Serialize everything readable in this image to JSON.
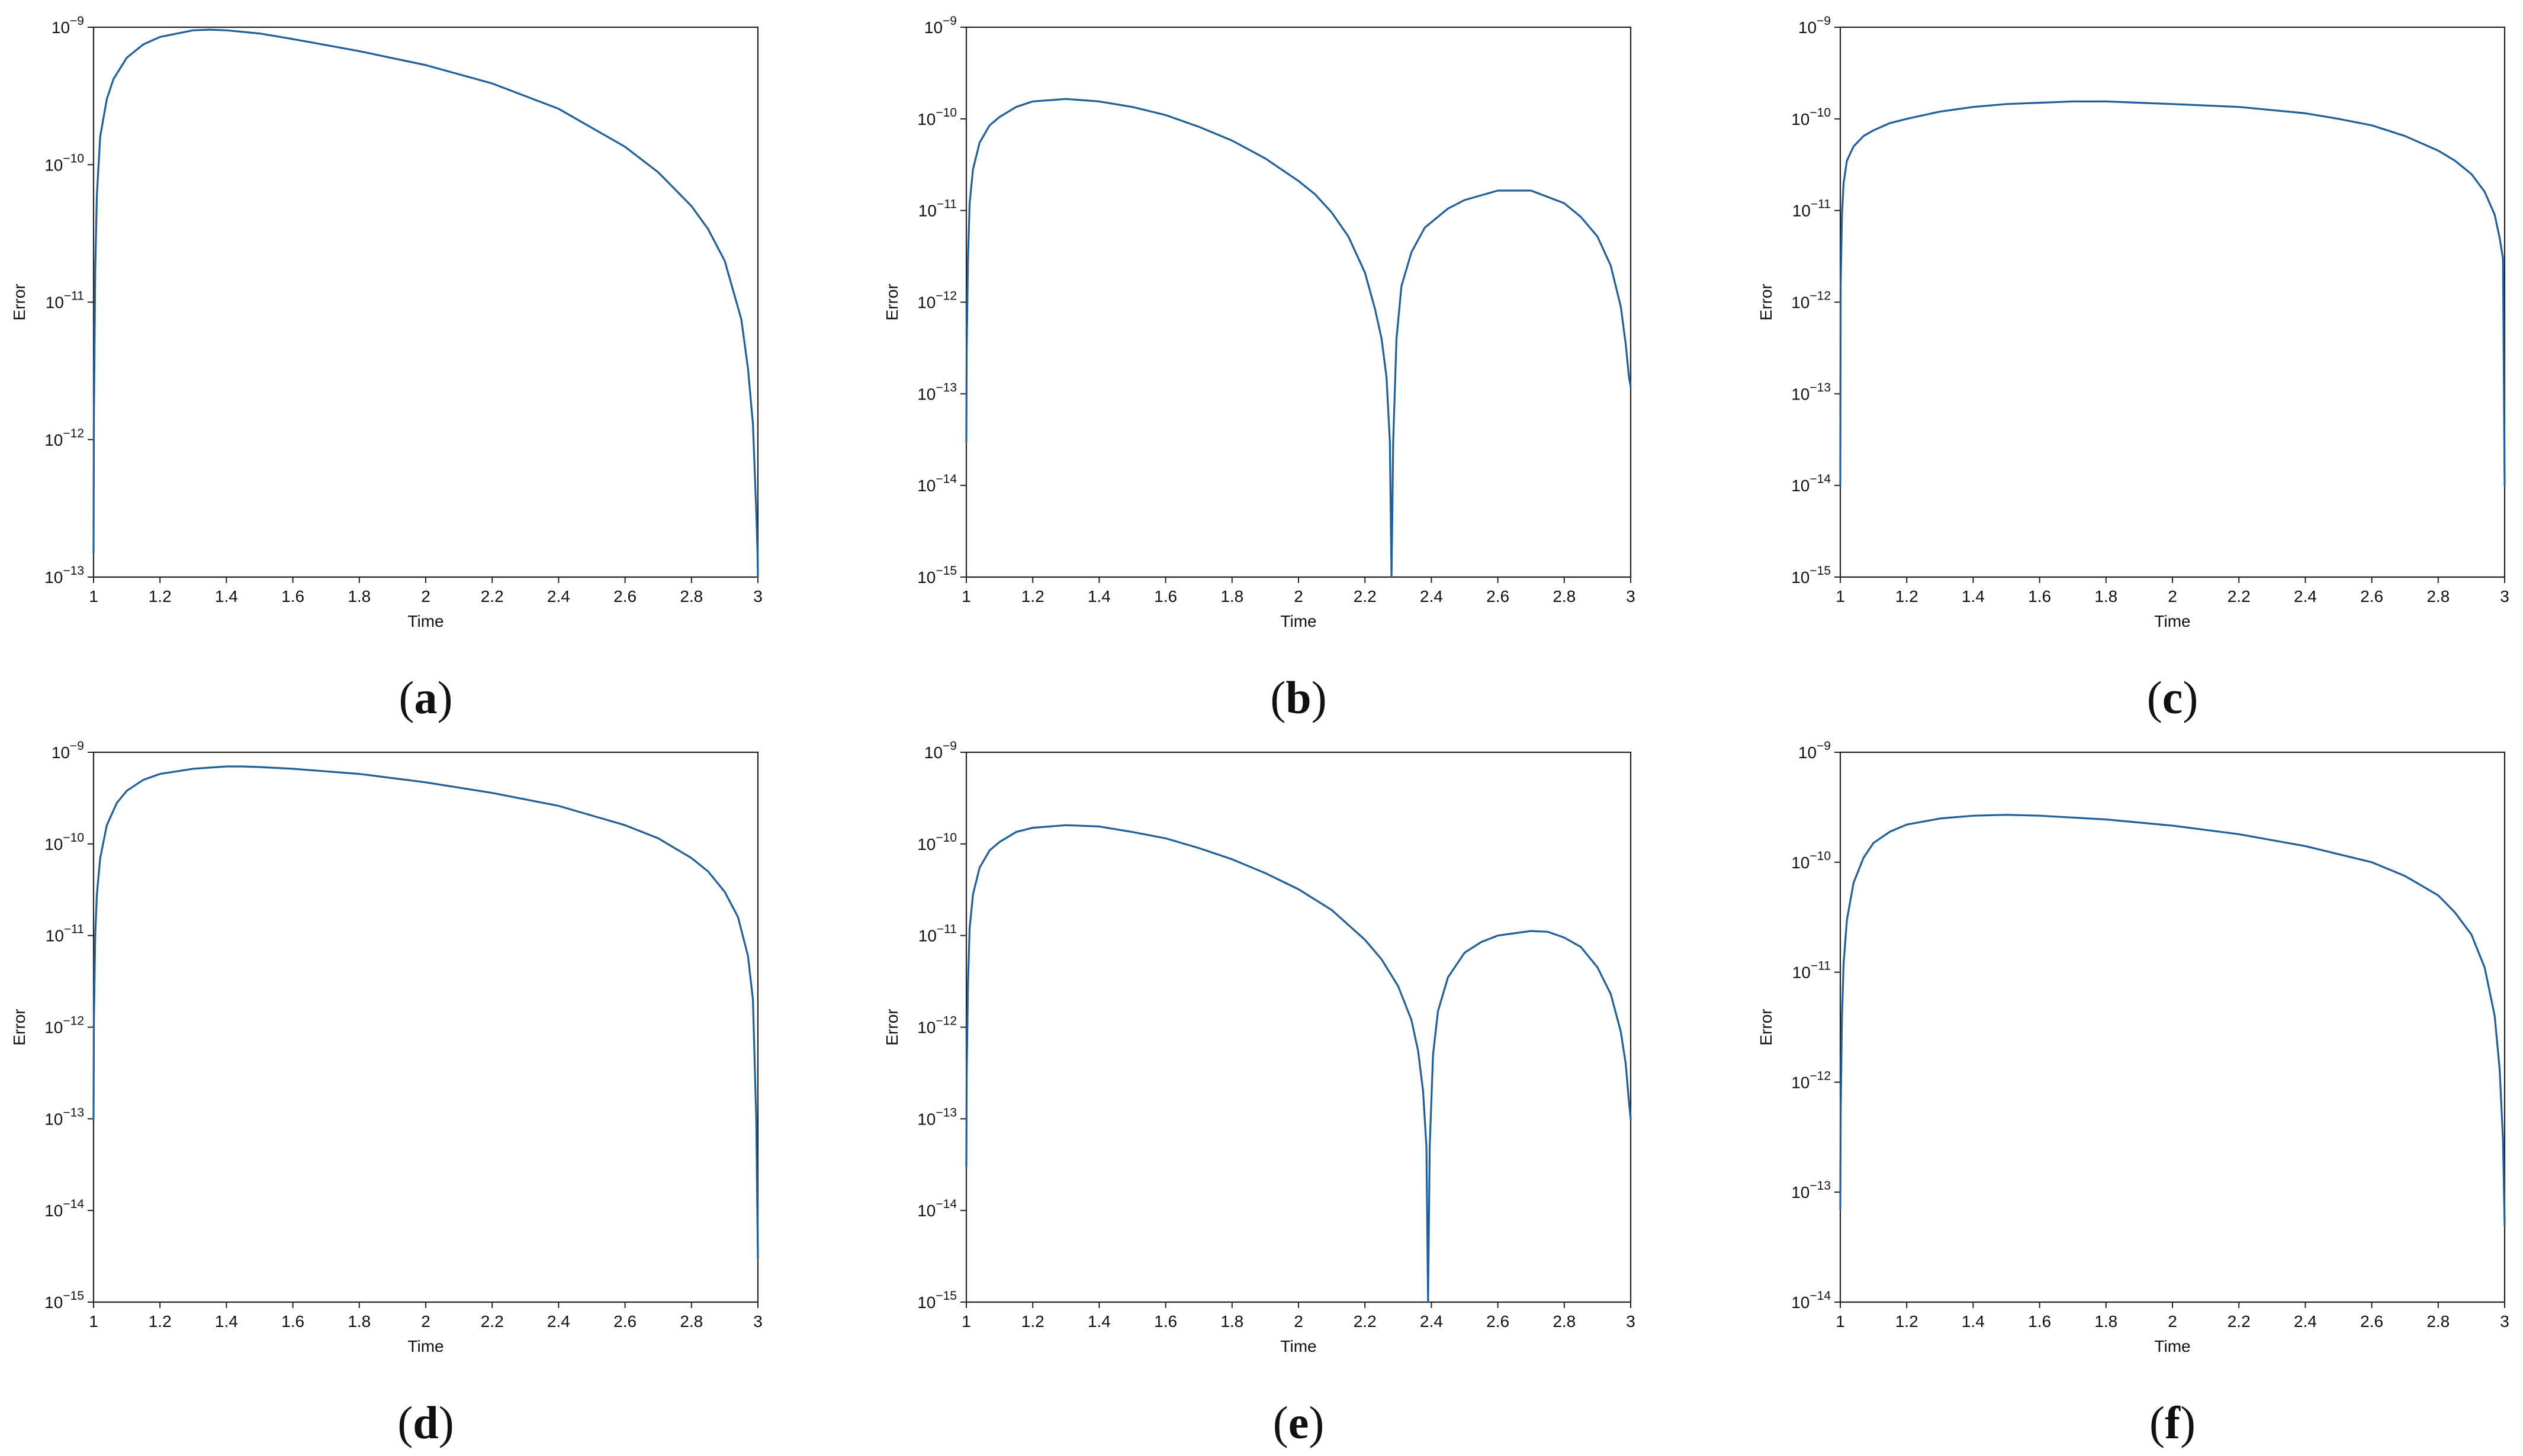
{
  "caption_parens": [
    "(",
    ")"
  ],
  "chart_data": [
    {
      "type": "line",
      "caption": "a",
      "xlabel": "Time",
      "ylabel": "Error",
      "xlim": [
        1,
        3
      ],
      "ylim_log10": [
        -13,
        -9
      ],
      "yscale": "log",
      "xticks": [
        "1",
        "1.2",
        "1.4",
        "1.6",
        "1.8",
        "2",
        "2.2",
        "2.4",
        "2.6",
        "2.8",
        "3"
      ],
      "yticks": [
        {
          "base": "10",
          "exp": "−9"
        },
        {
          "base": "10",
          "exp": "−10"
        },
        {
          "base": "10",
          "exp": "−11"
        },
        {
          "base": "10",
          "exp": "−12"
        },
        {
          "base": "10",
          "exp": "−13"
        }
      ],
      "line_color": "#1f5f9a",
      "series": [
        {
          "x": [
            1.0,
            1.001,
            1.005,
            1.01,
            1.02,
            1.04,
            1.06,
            1.1,
            1.15,
            1.2,
            1.3,
            1.35,
            1.4,
            1.5,
            1.6,
            1.8,
            2.0,
            2.2,
            2.4,
            2.6,
            2.7,
            2.8,
            2.85,
            2.9,
            2.95,
            2.97,
            2.985,
            2.995,
            2.999,
            3.0
          ],
          "y": [
            1.5e-13,
            1.5e-12,
            1.7e-11,
            6e-11,
            1.6e-10,
            3e-10,
            4.2e-10,
            6e-10,
            7.5e-10,
            8.5e-10,
            9.5e-10,
            9.6e-10,
            9.5e-10,
            9e-10,
            8.2e-10,
            6.7e-10,
            5.3e-10,
            3.9e-10,
            2.55e-10,
            1.35e-10,
            8.8e-11,
            5e-11,
            3.4e-11,
            2e-11,
            7.5e-12,
            3.3e-12,
            1.3e-12,
            3e-13,
            1.5e-13,
            1e-13
          ]
        }
      ]
    },
    {
      "type": "line",
      "caption": "b",
      "xlabel": "Time",
      "ylabel": "Error",
      "xlim": [
        1,
        3
      ],
      "ylim_log10": [
        -15,
        -9
      ],
      "yscale": "log",
      "xticks": [
        "1",
        "1.2",
        "1.4",
        "1.6",
        "1.8",
        "2",
        "2.2",
        "2.4",
        "2.6",
        "2.8",
        "3"
      ],
      "yticks": [
        {
          "base": "10",
          "exp": "−9"
        },
        {
          "base": "10",
          "exp": "−10"
        },
        {
          "base": "10",
          "exp": "−11"
        },
        {
          "base": "10",
          "exp": "−12"
        },
        {
          "base": "10",
          "exp": "−13"
        },
        {
          "base": "10",
          "exp": "−14"
        },
        {
          "base": "10",
          "exp": "−15"
        }
      ],
      "line_color": "#1f5f9a",
      "series": [
        {
          "x": [
            1.0,
            1.001,
            1.005,
            1.01,
            1.02,
            1.04,
            1.07,
            1.1,
            1.15,
            1.2,
            1.3,
            1.4,
            1.5,
            1.6,
            1.7,
            1.8,
            1.9,
            2.0,
            2.05,
            2.1,
            2.15,
            2.2,
            2.23,
            2.25,
            2.265,
            2.275,
            2.28,
            2.285,
            2.295,
            2.31,
            2.34,
            2.38,
            2.45,
            2.5,
            2.6,
            2.7,
            2.8,
            2.85,
            2.9,
            2.94,
            2.97,
            2.985,
            2.995,
            3.0
          ],
          "y": [
            3e-14,
            3e-13,
            3e-12,
            1.2e-11,
            2.8e-11,
            5.5e-11,
            8.5e-11,
            1.05e-10,
            1.35e-10,
            1.55e-10,
            1.65e-10,
            1.55e-10,
            1.35e-10,
            1.1e-10,
            8.2e-11,
            5.8e-11,
            3.7e-11,
            2.1e-11,
            1.5e-11,
            9.5e-12,
            5.2e-12,
            2.1e-12,
            8.5e-13,
            4e-13,
            1.5e-13,
            3e-14,
            1e-15,
            3e-14,
            4e-13,
            1.5e-12,
            3.5e-12,
            6.5e-12,
            1.05e-11,
            1.3e-11,
            1.65e-11,
            1.65e-11,
            1.2e-11,
            8.5e-12,
            5.2e-12,
            2.5e-12,
            9e-13,
            3.5e-13,
            1.5e-13,
            1.2e-13
          ]
        }
      ]
    },
    {
      "type": "line",
      "caption": "c",
      "xlabel": "Time",
      "ylabel": "Error",
      "xlim": [
        1,
        3
      ],
      "ylim_log10": [
        -15,
        -9
      ],
      "yscale": "log",
      "xticks": [
        "1",
        "1.2",
        "1.4",
        "1.6",
        "1.8",
        "2",
        "2.2",
        "2.4",
        "2.6",
        "2.8",
        "3"
      ],
      "yticks": [
        {
          "base": "10",
          "exp": "−9"
        },
        {
          "base": "10",
          "exp": "−10"
        },
        {
          "base": "10",
          "exp": "−11"
        },
        {
          "base": "10",
          "exp": "−12"
        },
        {
          "base": "10",
          "exp": "−13"
        },
        {
          "base": "10",
          "exp": "−14"
        },
        {
          "base": "10",
          "exp": "−15"
        }
      ],
      "line_color": "#1f5f9a",
      "series": [
        {
          "x": [
            1.0,
            1.001,
            1.005,
            1.01,
            1.02,
            1.04,
            1.07,
            1.1,
            1.15,
            1.2,
            1.3,
            1.4,
            1.5,
            1.6,
            1.7,
            1.8,
            1.9,
            2.0,
            2.2,
            2.4,
            2.5,
            2.6,
            2.7,
            2.8,
            2.85,
            2.9,
            2.94,
            2.97,
            2.985,
            2.995,
            3.0
          ],
          "y": [
            1e-14,
            1.5e-12,
            9e-12,
            2e-11,
            3.5e-11,
            5e-11,
            6.5e-11,
            7.5e-11,
            9e-11,
            1e-10,
            1.2e-10,
            1.35e-10,
            1.45e-10,
            1.5e-10,
            1.55e-10,
            1.55e-10,
            1.5e-10,
            1.45e-10,
            1.35e-10,
            1.15e-10,
            1e-10,
            8.5e-11,
            6.5e-11,
            4.5e-11,
            3.5e-11,
            2.5e-11,
            1.6e-11,
            9e-12,
            5e-12,
            3e-12,
            1e-14
          ]
        }
      ]
    },
    {
      "type": "line",
      "caption": "d",
      "xlabel": "Time",
      "ylabel": "Error",
      "xlim": [
        1,
        3
      ],
      "ylim_log10": [
        -15,
        -9
      ],
      "yscale": "log",
      "xticks": [
        "1",
        "1.2",
        "1.4",
        "1.6",
        "1.8",
        "2",
        "2.2",
        "2.4",
        "2.6",
        "2.8",
        "3"
      ],
      "yticks": [
        {
          "base": "10",
          "exp": "−9"
        },
        {
          "base": "10",
          "exp": "−10"
        },
        {
          "base": "10",
          "exp": "−11"
        },
        {
          "base": "10",
          "exp": "−12"
        },
        {
          "base": "10",
          "exp": "−13"
        },
        {
          "base": "10",
          "exp": "−14"
        },
        {
          "base": "10",
          "exp": "−15"
        }
      ],
      "line_color": "#1f5f9a",
      "series": [
        {
          "x": [
            1.0,
            1.001,
            1.005,
            1.01,
            1.02,
            1.04,
            1.07,
            1.1,
            1.15,
            1.2,
            1.3,
            1.4,
            1.45,
            1.5,
            1.6,
            1.8,
            2.0,
            2.2,
            2.4,
            2.6,
            2.7,
            2.8,
            2.85,
            2.9,
            2.94,
            2.97,
            2.985,
            2.995,
            3.0
          ],
          "y": [
            1e-13,
            1.2e-12,
            1e-11,
            2.8e-11,
            7e-11,
            1.6e-10,
            2.8e-10,
            3.8e-10,
            5e-10,
            5.8e-10,
            6.6e-10,
            7e-10,
            7e-10,
            6.9e-10,
            6.6e-10,
            5.8e-10,
            4.7e-10,
            3.6e-10,
            2.6e-10,
            1.6e-10,
            1.15e-10,
            7e-11,
            5e-11,
            3e-11,
            1.6e-11,
            6e-12,
            2e-12,
            1e-13,
            3e-15
          ]
        }
      ]
    },
    {
      "type": "line",
      "caption": "e",
      "xlabel": "Time",
      "ylabel": "Error",
      "xlim": [
        1,
        3
      ],
      "ylim_log10": [
        -15,
        -9
      ],
      "yscale": "log",
      "xticks": [
        "1",
        "1.2",
        "1.4",
        "1.6",
        "1.8",
        "2",
        "2.2",
        "2.4",
        "2.6",
        "2.8",
        "3"
      ],
      "yticks": [
        {
          "base": "10",
          "exp": "−9"
        },
        {
          "base": "10",
          "exp": "−10"
        },
        {
          "base": "10",
          "exp": "−11"
        },
        {
          "base": "10",
          "exp": "−12"
        },
        {
          "base": "10",
          "exp": "−13"
        },
        {
          "base": "10",
          "exp": "−14"
        },
        {
          "base": "10",
          "exp": "−15"
        }
      ],
      "line_color": "#1f5f9a",
      "series": [
        {
          "x": [
            1.0,
            1.001,
            1.005,
            1.01,
            1.02,
            1.04,
            1.07,
            1.1,
            1.15,
            1.2,
            1.3,
            1.4,
            1.5,
            1.6,
            1.7,
            1.8,
            1.9,
            2.0,
            2.1,
            2.2,
            2.25,
            2.3,
            2.34,
            2.36,
            2.375,
            2.385,
            2.39,
            2.395,
            2.405,
            2.42,
            2.45,
            2.5,
            2.55,
            2.6,
            2.7,
            2.75,
            2.8,
            2.85,
            2.9,
            2.94,
            2.97,
            2.985,
            2.995,
            3.0
          ],
          "y": [
            3e-14,
            3e-13,
            3e-12,
            1.2e-11,
            2.8e-11,
            5.5e-11,
            8.5e-11,
            1.05e-10,
            1.35e-10,
            1.5e-10,
            1.6e-10,
            1.55e-10,
            1.35e-10,
            1.15e-10,
            9e-11,
            6.8e-11,
            4.8e-11,
            3.2e-11,
            1.9e-11,
            9e-12,
            5.5e-12,
            2.8e-12,
            1.2e-12,
            5.5e-13,
            2e-13,
            5e-14,
            1e-15,
            5e-14,
            5e-13,
            1.5e-12,
            3.5e-12,
            6.5e-12,
            8.5e-12,
            1e-11,
            1.12e-11,
            1.1e-11,
            9.5e-12,
            7.5e-12,
            4.5e-12,
            2.3e-12,
            9e-13,
            4e-13,
            1.5e-13,
            1e-13
          ]
        }
      ]
    },
    {
      "type": "line",
      "caption": "f",
      "xlabel": "Time",
      "ylabel": "Error",
      "xlim": [
        1,
        3
      ],
      "ylim_log10": [
        -14,
        -9
      ],
      "yscale": "log",
      "xticks": [
        "1",
        "1.2",
        "1.4",
        "1.6",
        "1.8",
        "2",
        "2.2",
        "2.4",
        "2.6",
        "2.8",
        "3"
      ],
      "yticks": [
        {
          "base": "10",
          "exp": "−9"
        },
        {
          "base": "10",
          "exp": "−10"
        },
        {
          "base": "10",
          "exp": "−11"
        },
        {
          "base": "10",
          "exp": "−12"
        },
        {
          "base": "10",
          "exp": "−13"
        },
        {
          "base": "10",
          "exp": "−14"
        }
      ],
      "line_color": "#1f5f9a",
      "series": [
        {
          "x": [
            1.0,
            1.001,
            1.005,
            1.01,
            1.02,
            1.04,
            1.07,
            1.1,
            1.15,
            1.2,
            1.3,
            1.4,
            1.5,
            1.6,
            1.8,
            2.0,
            2.2,
            2.4,
            2.6,
            2.7,
            2.8,
            2.85,
            2.9,
            2.94,
            2.97,
            2.985,
            2.995,
            3.0
          ],
          "y": [
            7e-14,
            5e-13,
            4e-12,
            1.2e-11,
            3e-11,
            6.5e-11,
            1.1e-10,
            1.5e-10,
            1.9e-10,
            2.2e-10,
            2.5e-10,
            2.65e-10,
            2.7e-10,
            2.65e-10,
            2.45e-10,
            2.15e-10,
            1.8e-10,
            1.4e-10,
            1e-10,
            7.5e-11,
            5e-11,
            3.5e-11,
            2.2e-11,
            1.1e-11,
            4e-12,
            1.3e-12,
            3e-13,
            5e-14
          ]
        }
      ]
    }
  ]
}
